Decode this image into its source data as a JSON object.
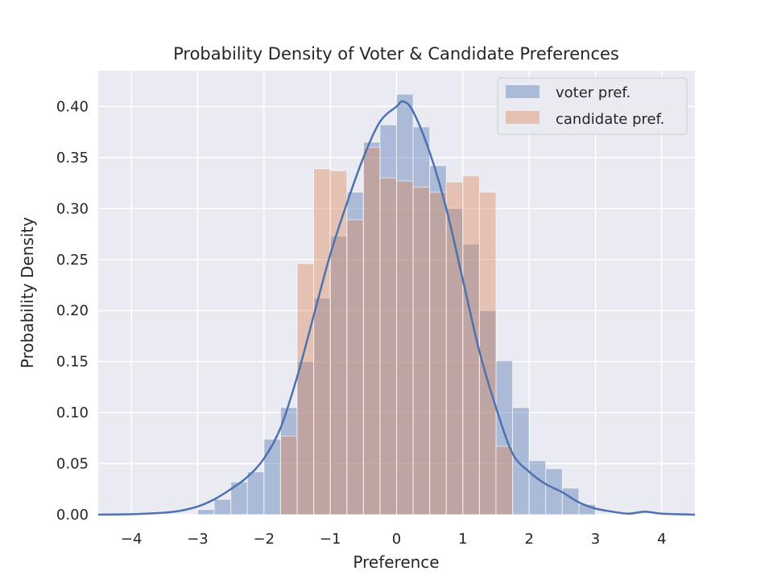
{
  "chart_data": {
    "type": "bar",
    "title": "Probability Density of Voter & Candidate Preferences",
    "xlabel": "Preference",
    "ylabel": "Probability Density",
    "xlim": [
      -4.5,
      4.5
    ],
    "ylim": [
      0,
      0.435
    ],
    "xticks": [
      -4,
      -3,
      -2,
      -1,
      0,
      1,
      2,
      3,
      4
    ],
    "yticks": [
      0.0,
      0.05,
      0.1,
      0.15,
      0.2,
      0.25,
      0.3,
      0.35,
      0.4
    ],
    "grid": true,
    "legend_position": "top-right",
    "colors": {
      "background": "#eaeaf2",
      "grid": "#ffffff",
      "voter": "#4c72b0",
      "candidate": "#dd8452",
      "kde": "#4c72b0"
    },
    "series": [
      {
        "name": "voter pref.",
        "kind": "histogram",
        "bin_edges": [
          -3.0,
          -2.75,
          -2.5,
          -2.25,
          -2.0,
          -1.75,
          -1.5,
          -1.25,
          -1.0,
          -0.75,
          -0.5,
          -0.25,
          0.0,
          0.25,
          0.5,
          0.75,
          1.0,
          1.25,
          1.5,
          1.75,
          2.0,
          2.25,
          2.5,
          2.75,
          3.0
        ],
        "values": [
          0.005,
          0.015,
          0.032,
          0.042,
          0.074,
          0.105,
          0.15,
          0.212,
          0.273,
          0.316,
          0.365,
          0.382,
          0.412,
          0.38,
          0.342,
          0.3,
          0.265,
          0.2,
          0.151,
          0.105,
          0.053,
          0.045,
          0.026,
          0.01
        ]
      },
      {
        "name": "candidate pref.",
        "kind": "histogram",
        "bin_edges": [
          -1.75,
          -1.5,
          -1.25,
          -1.0,
          -0.75,
          -0.5,
          -0.25,
          0.0,
          0.25,
          0.5,
          0.75,
          1.0,
          1.25,
          1.5,
          1.75
        ],
        "values": [
          0.077,
          0.246,
          0.339,
          0.337,
          0.289,
          0.36,
          0.33,
          0.327,
          0.321,
          0.316,
          0.326,
          0.332,
          0.316,
          0.067
        ]
      },
      {
        "name": "",
        "kind": "kde",
        "x": [
          -4.5,
          -4.0,
          -3.5,
          -3.25,
          -3.0,
          -2.75,
          -2.5,
          -2.25,
          -2.0,
          -1.75,
          -1.5,
          -1.25,
          -1.0,
          -0.75,
          -0.5,
          -0.25,
          0.0,
          0.1,
          0.25,
          0.5,
          0.75,
          1.0,
          1.25,
          1.5,
          1.75,
          2.0,
          2.25,
          2.5,
          2.75,
          3.0,
          3.25,
          3.5,
          3.75,
          4.0,
          4.5
        ],
        "y": [
          0.0,
          0.0005,
          0.002,
          0.004,
          0.008,
          0.015,
          0.025,
          0.037,
          0.055,
          0.085,
          0.135,
          0.195,
          0.255,
          0.305,
          0.35,
          0.385,
          0.4,
          0.405,
          0.395,
          0.355,
          0.3,
          0.23,
          0.16,
          0.105,
          0.06,
          0.042,
          0.03,
          0.022,
          0.012,
          0.006,
          0.003,
          0.001,
          0.003,
          0.001,
          0.0
        ]
      }
    ]
  }
}
